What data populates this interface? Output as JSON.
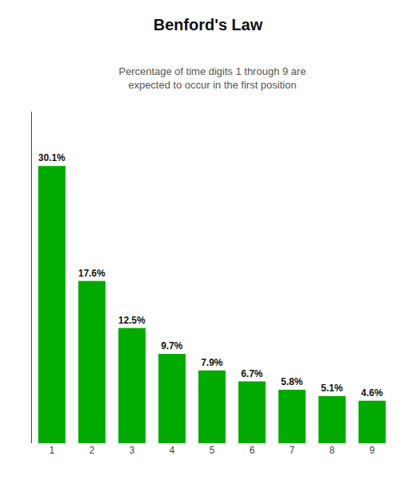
{
  "chart_data": {
    "type": "bar",
    "title": "Benford's Law",
    "subtitle": "Percentage of time digits 1 through 9 are\nexpected to occur in the first position",
    "categories": [
      "1",
      "2",
      "3",
      "4",
      "5",
      "6",
      "7",
      "8",
      "9"
    ],
    "values": [
      30.1,
      17.6,
      12.5,
      9.7,
      7.9,
      6.7,
      5.8,
      5.1,
      4.6
    ],
    "value_labels": [
      "30.1%",
      "17.6%",
      "12.5%",
      "9.7%",
      "7.9%",
      "6.7%",
      "5.8%",
      "5.1%",
      "4.6%"
    ],
    "color": "#00aa00",
    "ylim": [
      0,
      36
    ],
    "grid": false,
    "data_labels": true,
    "tick_labels": "x"
  }
}
